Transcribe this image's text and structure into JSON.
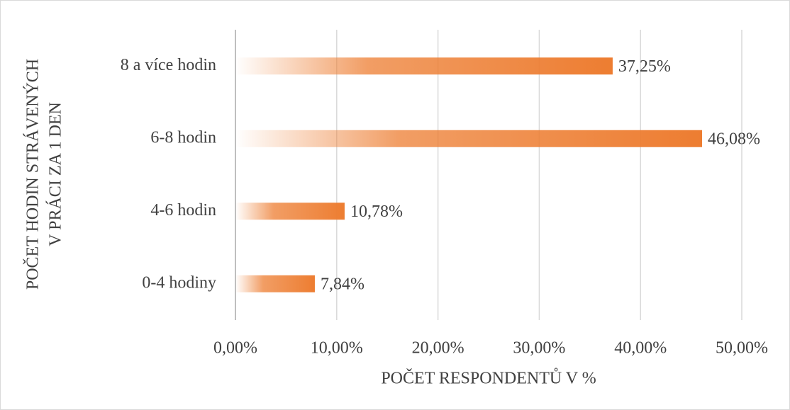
{
  "chart_data": {
    "type": "bar",
    "orientation": "horizontal",
    "categories": [
      "0-4 hodiny",
      "4-6 hodin",
      "6-8 hodin",
      "8 a více hodin"
    ],
    "values": [
      7.84,
      10.78,
      46.08,
      37.25
    ],
    "value_labels": [
      "7,84%",
      "10,78%",
      "46,08%",
      "37,25%"
    ],
    "color": "#ED7D31",
    "xlim": [
      0,
      50
    ],
    "xticks": [
      {
        "value": 0,
        "label": "0,00%"
      },
      {
        "value": 10,
        "label": "10,00%"
      },
      {
        "value": 20,
        "label": "20,00%"
      },
      {
        "value": 30,
        "label": "30,00%"
      },
      {
        "value": 40,
        "label": "40,00%"
      },
      {
        "value": 50,
        "label": "50,00%"
      }
    ],
    "xlabel": "POČET RESPONDENTŮ V %",
    "ylabel": [
      "POČET HODIN STRÁVENÝCH",
      "V PRÁCI ZA 1 DEN"
    ],
    "grid": true
  }
}
